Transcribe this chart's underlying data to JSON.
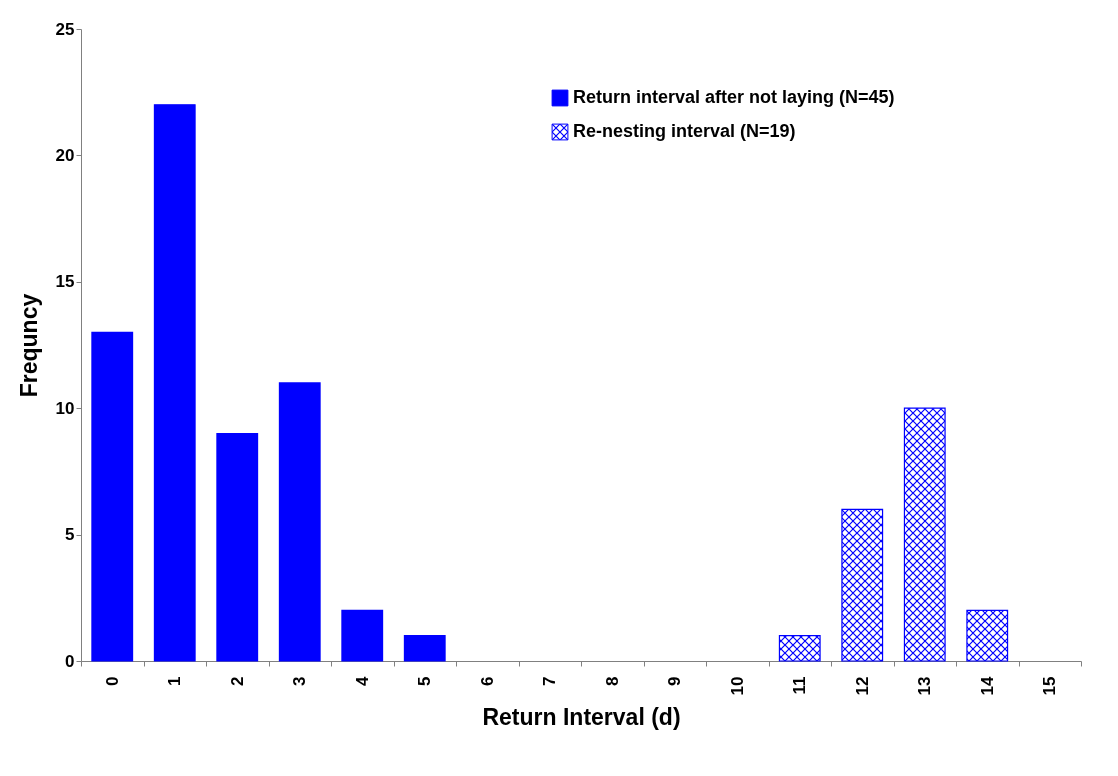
{
  "chart_data": {
    "type": "bar",
    "xlabel": "Return Interval (d)",
    "ylabel": "Frequncy",
    "categories": [
      "0",
      "1",
      "2",
      "3",
      "4",
      "5",
      "6",
      "7",
      "8",
      "9",
      "10",
      "11",
      "12",
      "13",
      "14",
      "15"
    ],
    "series": [
      {
        "name": "Return interval after not laying (N=45)",
        "color": "#0000ff",
        "values": [
          13,
          22,
          9,
          11,
          2,
          1,
          null,
          null,
          null,
          null,
          null,
          null,
          null,
          null,
          null,
          null
        ]
      },
      {
        "name": "Re-nesting interval (N=19)",
        "color": "#0000ff",
        "values": [
          null,
          null,
          null,
          null,
          null,
          null,
          null,
          null,
          null,
          null,
          null,
          1,
          6,
          10,
          2,
          null
        ]
      }
    ],
    "ylim": [
      0,
      25
    ],
    "yticks": [
      0,
      5,
      10,
      15,
      20,
      25
    ],
    "grid": false,
    "legend": "top right"
  }
}
